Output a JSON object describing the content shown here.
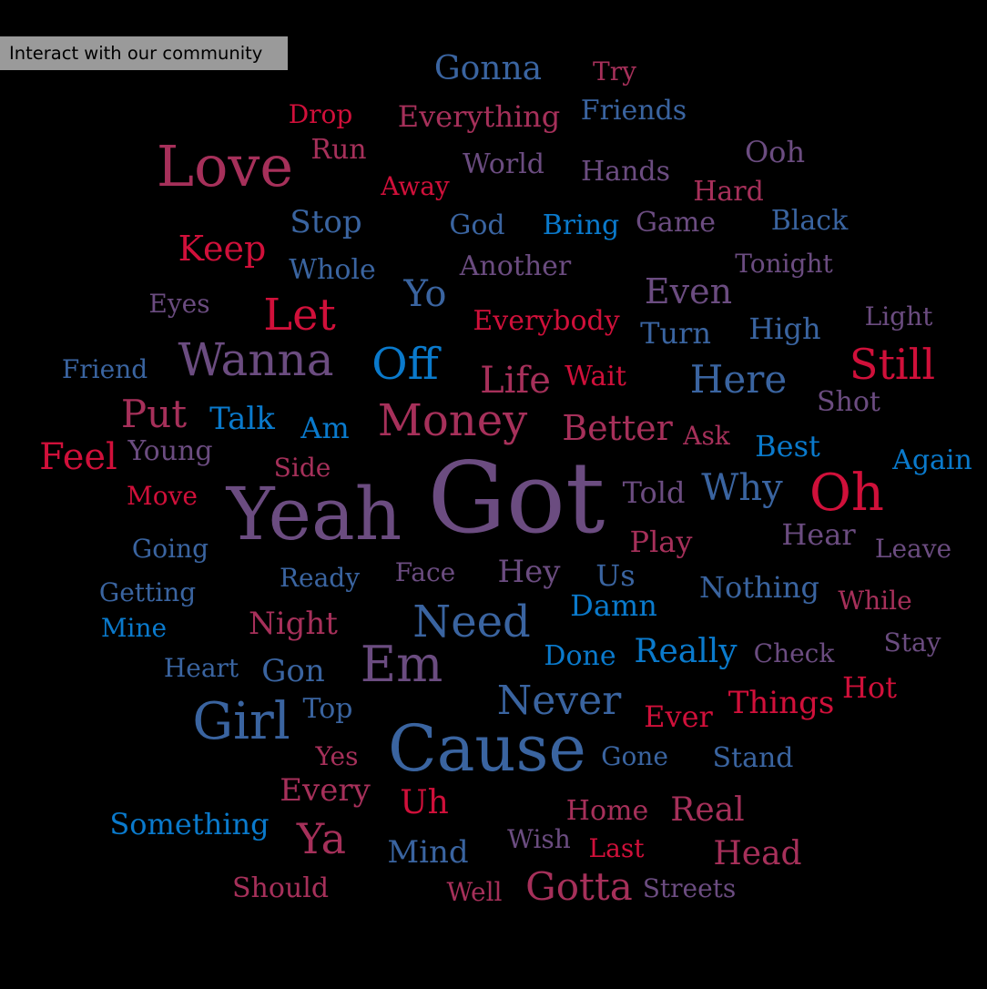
{
  "button": {
    "label": "Interact with our community"
  },
  "palette": {
    "background": "#000000",
    "crimson": "#d0103a",
    "rose": "#a6305a",
    "plum": "#6b4c80",
    "steel": "#3a64a0",
    "azure": "#0a7acc",
    "button_bg": "#9a9a9a"
  },
  "words": [
    {
      "text": "Got",
      "color": "#6b4c80"
    },
    {
      "text": "Yeah",
      "color": "#6b4c80"
    },
    {
      "text": "Cause",
      "color": "#3a64a0"
    },
    {
      "text": "Love",
      "color": "#a6305a"
    },
    {
      "text": "Money",
      "color": "#a6305a"
    },
    {
      "text": "Oh",
      "color": "#d0103a"
    },
    {
      "text": "Girl",
      "color": "#3a64a0"
    },
    {
      "text": "Wanna",
      "color": "#6b4c80"
    },
    {
      "text": "Need",
      "color": "#3a64a0"
    },
    {
      "text": "Em",
      "color": "#6b4c80"
    },
    {
      "text": "Never",
      "color": "#3a64a0"
    },
    {
      "text": "Let",
      "color": "#d0103a"
    },
    {
      "text": "Off",
      "color": "#0a7acc"
    },
    {
      "text": "Here",
      "color": "#3a64a0"
    },
    {
      "text": "Still",
      "color": "#d0103a"
    },
    {
      "text": "Gotta",
      "color": "#a6305a"
    },
    {
      "text": "Put",
      "color": "#a6305a"
    },
    {
      "text": "Feel",
      "color": "#d0103a"
    },
    {
      "text": "Ya",
      "color": "#a6305a"
    },
    {
      "text": "Life",
      "color": "#a6305a"
    },
    {
      "text": "Why",
      "color": "#3a64a0"
    },
    {
      "text": "Better",
      "color": "#a6305a"
    },
    {
      "text": "Keep",
      "color": "#d0103a"
    },
    {
      "text": "Gonna",
      "color": "#3a64a0"
    },
    {
      "text": "Even",
      "color": "#6b4c80"
    },
    {
      "text": "Yo",
      "color": "#3a64a0"
    },
    {
      "text": "Real",
      "color": "#a6305a"
    },
    {
      "text": "Really",
      "color": "#0a7acc"
    },
    {
      "text": "Head",
      "color": "#a6305a"
    },
    {
      "text": "Things",
      "color": "#d0103a"
    },
    {
      "text": "Stop",
      "color": "#3a64a0"
    },
    {
      "text": "Every",
      "color": "#a6305a"
    },
    {
      "text": "Everything",
      "color": "#a6305a"
    },
    {
      "text": "Uh",
      "color": "#d0103a"
    },
    {
      "text": "Talk",
      "color": "#0a7acc"
    },
    {
      "text": "Night",
      "color": "#a6305a"
    },
    {
      "text": "Hey",
      "color": "#6b4c80"
    },
    {
      "text": "Nothing",
      "color": "#3a64a0"
    },
    {
      "text": "Something",
      "color": "#0a7acc"
    },
    {
      "text": "Mind",
      "color": "#3a64a0"
    },
    {
      "text": "Damn",
      "color": "#0a7acc"
    },
    {
      "text": "Hear",
      "color": "#6b4c80"
    },
    {
      "text": "High",
      "color": "#3a64a0"
    },
    {
      "text": "Gon",
      "color": "#3a64a0"
    },
    {
      "text": "Hot",
      "color": "#d0103a"
    },
    {
      "text": "Everybody",
      "color": "#d0103a"
    },
    {
      "text": "World",
      "color": "#6b4c80"
    },
    {
      "text": "Whole",
      "color": "#3a64a0"
    },
    {
      "text": "Young",
      "color": "#6b4c80"
    },
    {
      "text": "Am",
      "color": "#0a7acc"
    },
    {
      "text": "Best",
      "color": "#0a7acc"
    },
    {
      "text": "Again",
      "color": "#0a7acc"
    },
    {
      "text": "Another",
      "color": "#6b4c80"
    },
    {
      "text": "Told",
      "color": "#6b4c80"
    },
    {
      "text": "Turn",
      "color": "#3a64a0"
    },
    {
      "text": "Home",
      "color": "#a6305a"
    },
    {
      "text": "Should",
      "color": "#a6305a"
    },
    {
      "text": "Play",
      "color": "#a6305a"
    },
    {
      "text": "Ever",
      "color": "#d0103a"
    },
    {
      "text": "Stand",
      "color": "#3a64a0"
    },
    {
      "text": "Black",
      "color": "#3a64a0"
    },
    {
      "text": "Game",
      "color": "#6b4c80"
    },
    {
      "text": "Hands",
      "color": "#6b4c80"
    },
    {
      "text": "Friends",
      "color": "#3a64a0"
    },
    {
      "text": "Ooh",
      "color": "#6b4c80"
    },
    {
      "text": "Hard",
      "color": "#a6305a"
    },
    {
      "text": "Done",
      "color": "#0a7acc"
    },
    {
      "text": "Wait",
      "color": "#d0103a"
    },
    {
      "text": "Leave",
      "color": "#6b4c80"
    },
    {
      "text": "While",
      "color": "#a6305a"
    },
    {
      "text": "Shot",
      "color": "#6b4c80"
    },
    {
      "text": "Going",
      "color": "#3a64a0"
    },
    {
      "text": "Getting",
      "color": "#3a64a0"
    },
    {
      "text": "Mine",
      "color": "#0a7acc"
    },
    {
      "text": "Friend",
      "color": "#3a64a0"
    },
    {
      "text": "Move",
      "color": "#d0103a"
    },
    {
      "text": "Face",
      "color": "#6b4c80"
    },
    {
      "text": "Us",
      "color": "#3a64a0"
    },
    {
      "text": "Ready",
      "color": "#3a64a0"
    },
    {
      "text": "Top",
      "color": "#3a64a0"
    },
    {
      "text": "Heart",
      "color": "#3a64a0"
    },
    {
      "text": "Check",
      "color": "#6b4c80"
    },
    {
      "text": "Stay",
      "color": "#6b4c80"
    },
    {
      "text": "Light",
      "color": "#6b4c80"
    },
    {
      "text": "Tonight",
      "color": "#6b4c80"
    },
    {
      "text": "Bring",
      "color": "#0a7acc"
    },
    {
      "text": "God",
      "color": "#3a64a0"
    },
    {
      "text": "Run",
      "color": "#a6305a"
    },
    {
      "text": "Drop",
      "color": "#d0103a"
    },
    {
      "text": "Try",
      "color": "#a6305a"
    },
    {
      "text": "Away",
      "color": "#d0103a"
    },
    {
      "text": "Eyes",
      "color": "#6b4c80"
    },
    {
      "text": "Ask",
      "color": "#a6305a"
    },
    {
      "text": "Side",
      "color": "#a6305a"
    },
    {
      "text": "Gone",
      "color": "#3a64a0"
    },
    {
      "text": "Yes",
      "color": "#a6305a"
    },
    {
      "text": "Wish",
      "color": "#6b4c80"
    },
    {
      "text": "Last",
      "color": "#d0103a"
    },
    {
      "text": "Well",
      "color": "#a6305a"
    },
    {
      "text": "Streets",
      "color": "#6b4c80"
    }
  ]
}
